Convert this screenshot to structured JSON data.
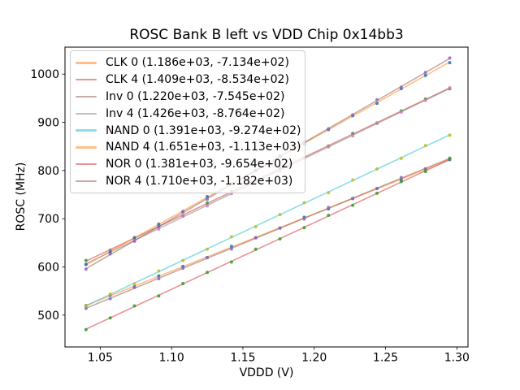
{
  "chart_data": {
    "type": "scatter",
    "title": "ROSC Bank B left vs VDD Chip 0x14bb3",
    "xlabel": "VDDD (V)",
    "ylabel": "ROSC (MHz)",
    "xlim": [
      1.0253,
      1.3078
    ],
    "ylim": [
      434,
      1056
    ],
    "grid": false,
    "legend_position": "upper left",
    "xticks": {
      "values": [
        1.05,
        1.1,
        1.15,
        1.2,
        1.25,
        1.3
      ],
      "labels": [
        "1.05",
        "1.10",
        "1.15",
        "1.20",
        "1.25",
        "1.30"
      ]
    },
    "yticks": {
      "values": [
        500,
        600,
        700,
        800,
        900,
        1000
      ],
      "labels": [
        "500",
        "600",
        "700",
        "800",
        "900",
        "1000"
      ]
    },
    "x_points": [
      1.04,
      1.057,
      1.074,
      1.091,
      1.108,
      1.125,
      1.142,
      1.159,
      1.176,
      1.193,
      1.21,
      1.227,
      1.244,
      1.261,
      1.278,
      1.295
    ],
    "fit_x_range": [
      1.04,
      1.295
    ],
    "series": [
      {
        "name": "CLK 0",
        "label": "CLK 0 (1.186e+03, -7.134e+02)",
        "slope": 1186,
        "intercept": -713.4,
        "line_color": "#ff7f0e",
        "marker_color": "#1f77b4"
      },
      {
        "name": "CLK 4",
        "label": "CLK 4 (1.409e+03, -8.534e+02)",
        "slope": 1409,
        "intercept": -853.4,
        "line_color": "#d62728",
        "marker_color": "#2ca02c"
      },
      {
        "name": "Inv 0",
        "label": "Inv 0 (1.220e+03, -7.545e+02)",
        "slope": 1220,
        "intercept": -754.5,
        "line_color": "#8c564b",
        "marker_color": "#9467bd"
      },
      {
        "name": "Inv 4",
        "label": "Inv 4 (1.426e+03, -8.764e+02)",
        "slope": 1426,
        "intercept": -876.4,
        "line_color": "#7f7f7f",
        "marker_color": "#e377c2"
      },
      {
        "name": "NAND 0",
        "label": "NAND 0 (1.391e+03, -9.274e+02)",
        "slope": 1391,
        "intercept": -927.4,
        "line_color": "#17becf",
        "marker_color": "#bcbd22"
      },
      {
        "name": "NAND 4",
        "label": "NAND 4 (1.651e+03, -1.113e+03)",
        "slope": 1651,
        "intercept": -1113,
        "line_color": "#ff7f0e",
        "marker_color": "#1f77b4"
      },
      {
        "name": "NOR 0",
        "label": "NOR 0 (1.381e+03, -9.654e+02)",
        "slope": 1381,
        "intercept": -965.4,
        "line_color": "#d62728",
        "marker_color": "#2ca02c"
      },
      {
        "name": "NOR 4",
        "label": "NOR 4 (1.710e+03, -1.182e+03)",
        "slope": 1710,
        "intercept": -1182,
        "line_color": "#8c564b",
        "marker_color": "#9467bd"
      }
    ]
  }
}
